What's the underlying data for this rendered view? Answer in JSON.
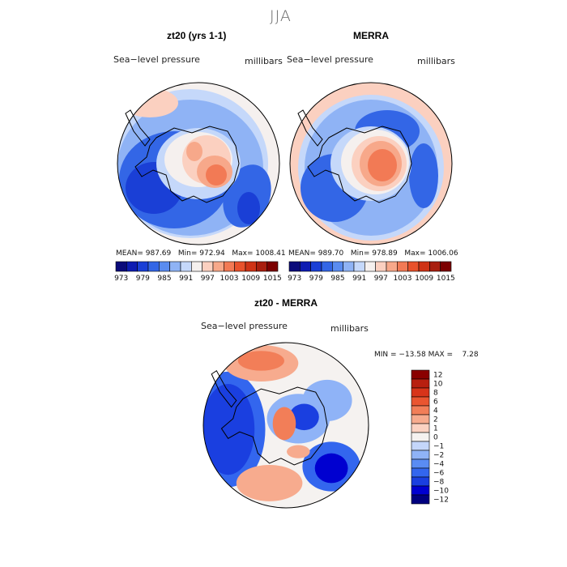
{
  "figure": {
    "title": "JJA",
    "diff_minmax": "MIN = −13.58 MAX =    7.28"
  },
  "panels": [
    {
      "title": "zt20 (yrs 1-1)",
      "variable": "Sea−level pressure",
      "units": "millibars",
      "mean_label": "MEAN=",
      "mean": "987.69",
      "min_label": "Min=",
      "min": "972.94",
      "max_label": "Max=",
      "max": "1008.41"
    },
    {
      "title": "MERRA",
      "variable": "Sea−level pressure",
      "units": "millibars",
      "mean_label": "MEAN=",
      "mean": "989.70",
      "min_label": "Min=",
      "min": "978.89",
      "max_label": "Max=",
      "max": "1006.06"
    },
    {
      "title": "zt20 - MERRA",
      "variable": "Sea−level pressure",
      "units": "millibars"
    }
  ],
  "colors": {
    "slp_scale": [
      "#0a0a7a",
      "#0d1cb2",
      "#1a3fd6",
      "#3366e6",
      "#5a8cf0",
      "#8fb3f5",
      "#c5d8fa",
      "#f5f0ee",
      "#fbd0c0",
      "#f7a88a",
      "#f27a55",
      "#e8522c",
      "#cf3316",
      "#a81e0e",
      "#7c0000"
    ],
    "diff_scale": [
      "#00007f",
      "#0000d0",
      "#1a3fe0",
      "#3366ee",
      "#5a8cf3",
      "#8fb3f7",
      "#c4d6fa",
      "#f5f2f0",
      "#fbd2c2",
      "#f7ab8e",
      "#f27e58",
      "#ea5530",
      "#d8341a",
      "#b81f10",
      "#8a0000"
    ],
    "continent_outline": "#000000"
  },
  "chart_data": [
    {
      "type": "heatmap",
      "projection": "south-polar-stereographic",
      "title": "zt20 (yrs 1-1)",
      "subtitle": "Sea−level pressure",
      "units": "millibars",
      "stats": {
        "mean": 987.69,
        "min": 972.94,
        "max": 1008.41
      },
      "colorbar": {
        "orientation": "horizontal",
        "levels": [
          973,
          976,
          979,
          982,
          985,
          988,
          991,
          994,
          997,
          1000,
          1003,
          1006,
          1009,
          1012,
          1015
        ],
        "tick_labels": [
          "973",
          "979",
          "985",
          "991",
          "997",
          "1003",
          "1009",
          "1015"
        ]
      }
    },
    {
      "type": "heatmap",
      "projection": "south-polar-stereographic",
      "title": "MERRA",
      "subtitle": "Sea−level pressure",
      "units": "millibars",
      "stats": {
        "mean": 989.7,
        "min": 978.89,
        "max": 1006.06
      },
      "colorbar": {
        "orientation": "horizontal",
        "levels": [
          973,
          976,
          979,
          982,
          985,
          988,
          991,
          994,
          997,
          1000,
          1003,
          1006,
          1009,
          1012,
          1015
        ],
        "tick_labels": [
          "973",
          "979",
          "985",
          "991",
          "997",
          "1003",
          "1009",
          "1015"
        ]
      }
    },
    {
      "type": "heatmap",
      "projection": "south-polar-stereographic",
      "title": "zt20 - MERRA",
      "subtitle": "Sea−level pressure",
      "units": "millibars",
      "stats": {
        "min": -13.58,
        "max": 7.28
      },
      "colorbar": {
        "orientation": "vertical",
        "levels": [
          12,
          10,
          8,
          6,
          4,
          2,
          1,
          0,
          -1,
          -2,
          -4,
          -6,
          -8,
          -10,
          -12
        ],
        "tick_labels": [
          "12",
          "10",
          "8",
          "6",
          "4",
          "2",
          "1",
          "0",
          "−1",
          "−2",
          "−4",
          "−6",
          "−8",
          "−10",
          "−12"
        ]
      }
    }
  ]
}
